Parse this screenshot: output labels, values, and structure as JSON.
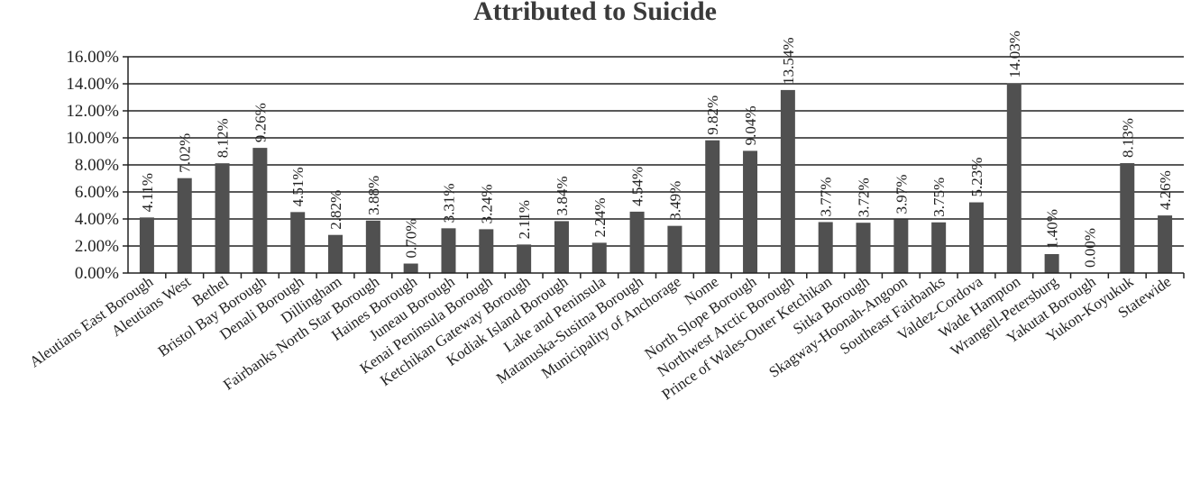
{
  "chart_data": {
    "type": "bar",
    "title": "Attributed to Suicide",
    "xlabel": "",
    "ylabel": "",
    "ylim": [
      0,
      16
    ],
    "grid": true,
    "y_ticks": [
      "0.00%",
      "2.00%",
      "4.00%",
      "6.00%",
      "8.00%",
      "10.00%",
      "12.00%",
      "14.00%",
      "16.00%"
    ],
    "categories": [
      "Aleutians East Borough",
      "Aleutians West",
      "Bethel",
      "Bristol Bay Borough",
      "Denali Borough",
      "Dillingham",
      "Fairbanks North Star Borough",
      "Haines Borough",
      "Juneau Borough",
      "Kenai Peninsula Borough",
      "Ketchikan Gateway Borough",
      "Kodiak Island Borough",
      "Lake and Peninsula",
      "Matanuska-Susitna Borough",
      "Municipality of Anchorage",
      "Nome",
      "North Slope Borough",
      "Northwest Arctic Borough",
      "Prince of Wales-Outer Ketchikan",
      "Sitka Borough",
      "Skagway-Hoonah-Angoon",
      "Southeast Fairbanks",
      "Valdez-Cordova",
      "Wade Hampton",
      "Wrangell-Petersburg",
      "Yakutat Borough",
      "Yukon-Koyukuk",
      "Statewide"
    ],
    "values": [
      4.11,
      7.02,
      8.12,
      9.26,
      4.51,
      2.82,
      3.88,
      0.7,
      3.31,
      3.24,
      2.11,
      3.84,
      2.24,
      4.54,
      3.49,
      9.82,
      9.04,
      13.54,
      3.77,
      3.72,
      3.97,
      3.75,
      5.23,
      14.03,
      1.4,
      0.0,
      8.13,
      4.26
    ],
    "value_labels": [
      "4.11%",
      "7.02%",
      "8.12%",
      "9.26%",
      "4.51%",
      "2.82%",
      "3.88%",
      "0.70%",
      "3.31%",
      "3.24%",
      "2.11%",
      "3.84%",
      "2.24%",
      "4.54%",
      "3.49%",
      "9.82%",
      "9.04%",
      "13.54%",
      "3.77%",
      "3.72%",
      "3.97%",
      "3.75%",
      "5.23%",
      "14.03%",
      "1.40%",
      "0.00%",
      "8.13%",
      "4.26%"
    ],
    "colors": {
      "bar": "#505050",
      "text": "#222222",
      "title": "#3a3a3a"
    }
  }
}
